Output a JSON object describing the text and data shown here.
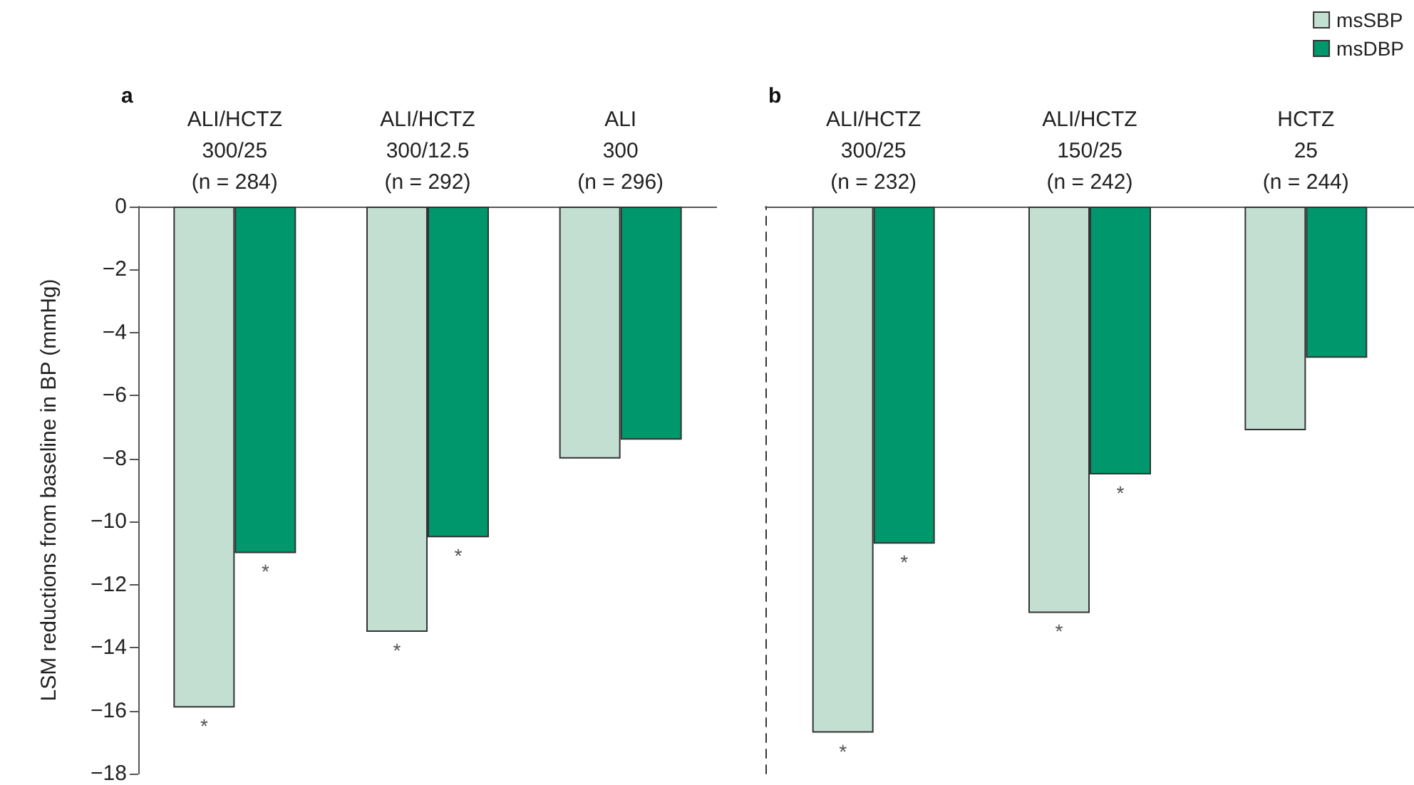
{
  "chart_data": [
    {
      "type": "bar",
      "title": "a",
      "ylabel": "LSM reductions from baseline in BP (mmHg)",
      "categories": [
        "ALI/HCTZ\n300/25\n(n = 284)",
        "ALI/HCTZ\n300/12.5\n(n = 292)",
        "ALI\n300\n(n = 296)"
      ],
      "series": [
        {
          "color": "#c3dfd1",
          "values": [
            -15.9,
            -13.5,
            -8.0
          ],
          "value_labels": [
            "*",
            "*",
            null
          ]
        },
        {
          "color": "#00976c",
          "values": [
            -11.0,
            -10.5,
            -7.4
          ],
          "value_labels": [
            "*",
            "*",
            null
          ]
        }
      ],
      "ylim": [
        -18,
        0
      ],
      "yticks": [
        {
          "value": -18,
          "label": "−18"
        },
        {
          "value": -16,
          "label": "−16"
        },
        {
          "value": -14,
          "label": "−14"
        },
        {
          "value": -12,
          "label": "−12"
        },
        {
          "value": -10,
          "label": "−10"
        },
        {
          "value": -8,
          "label": "−8"
        },
        {
          "value": -6,
          "label": "−6"
        },
        {
          "value": -4,
          "label": "−4"
        },
        {
          "value": -2,
          "label": "−2"
        },
        0
      ],
      "legend": false
    },
    {
      "type": "bar",
      "title": "b",
      "categories": [
        "ALI/HCTZ\n300/25\n(n = 232)",
        "ALI/HCTZ\n150/25\n(n = 242)",
        "HCTZ\n25\n(n = 244)"
      ],
      "series": [
        {
          "name": "msSBP",
          "color": "#c3dfd1",
          "values": [
            -16.7,
            -12.9,
            -7.1
          ],
          "value_labels": [
            "*",
            "*",
            null
          ]
        },
        {
          "name": "msDBP",
          "color": "#00976c",
          "values": [
            -10.7,
            -8.5,
            -4.8
          ],
          "value_labels": [
            "*",
            "*",
            null
          ]
        }
      ],
      "ylim": [
        -18,
        0
      ],
      "tick_labels": "x",
      "legend": "top right"
    }
  ]
}
